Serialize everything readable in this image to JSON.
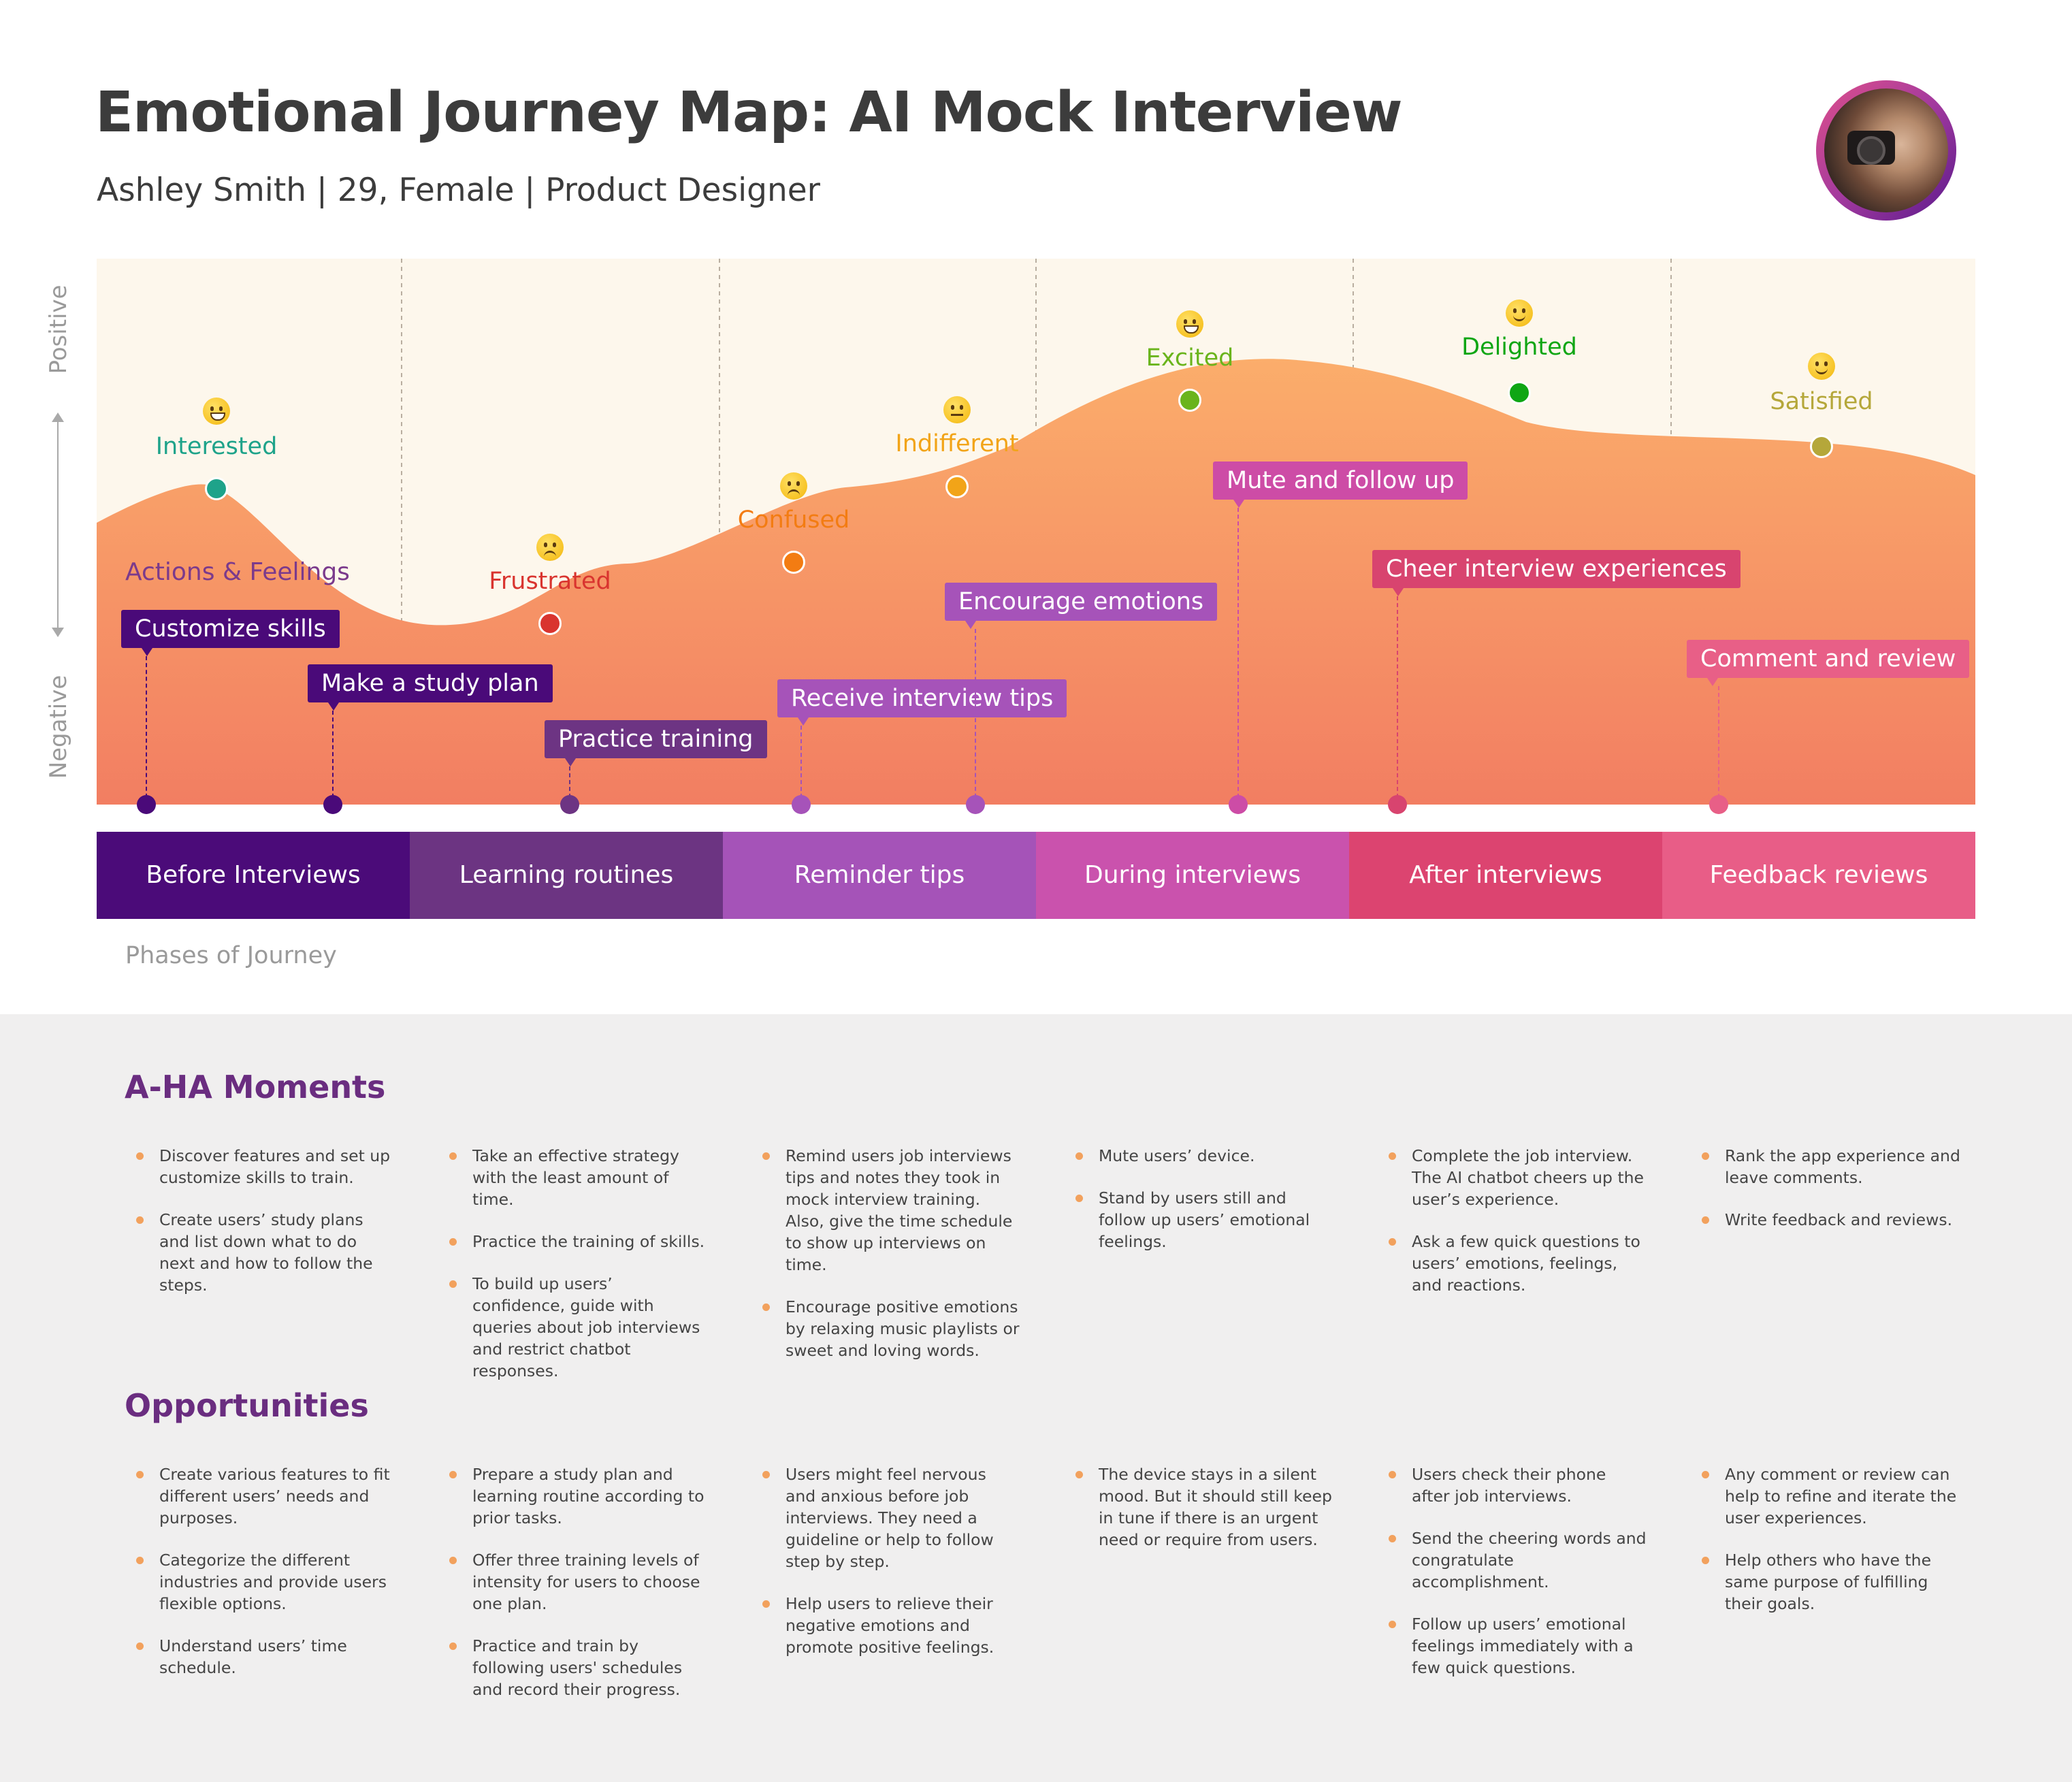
{
  "title": "Emotional Journey Map:  AI Mock Interview",
  "subtitle": "Ashley Smith | 29, Female | Product Designer",
  "axis": {
    "positive": "Positive",
    "negative": "Negative"
  },
  "actions_label": "Actions & Feelings",
  "emotions": [
    {
      "label": "Interested",
      "color": "#1ea38a",
      "emoji": "grinning"
    },
    {
      "label": "Frustrated",
      "color": "#d9342f",
      "emoji": "persevering"
    },
    {
      "label": "Confused",
      "color": "#f37c12",
      "emoji": "confused"
    },
    {
      "label": "Indifferent",
      "color": "#f2a418",
      "emoji": "neutral"
    },
    {
      "label": "Excited",
      "color": "#6ab41c",
      "emoji": "laughing"
    },
    {
      "label": "Delighted",
      "color": "#0fa614",
      "emoji": "slight-smile"
    },
    {
      "label": "Satisfied",
      "color": "#b5a73a",
      "emoji": "relieved"
    }
  ],
  "actions": [
    {
      "label": "Customize skills",
      "color": "#4a0a79"
    },
    {
      "label": "Make a study plan",
      "color": "#4a0a79"
    },
    {
      "label": "Practice training",
      "color": "#6d3483"
    },
    {
      "label": "Receive interview tips",
      "color": "#a653b9"
    },
    {
      "label": "Encourage emotions",
      "color": "#a653b9"
    },
    {
      "label": "Mute and follow up",
      "color": "#cd4ca6"
    },
    {
      "label": "Cheer interview experiences",
      "color": "#d8446f"
    },
    {
      "label": "Comment and review",
      "color": "#e85f87"
    }
  ],
  "phases_label": "Phases of Journey",
  "phases": [
    {
      "label": "Before Interviews",
      "color": "#4b0b79"
    },
    {
      "label": "Learning routines",
      "color": "#6c3482"
    },
    {
      "label": "Reminder tips",
      "color": "#a553b8"
    },
    {
      "label": "During interviews",
      "color": "#ca52ad"
    },
    {
      "label": "After interviews",
      "color": "#dc4470"
    },
    {
      "label": "Feedback reviews",
      "color": "#e85d87"
    }
  ],
  "aha": {
    "title": "A-HA Moments",
    "columns": [
      [
        "Discover features and set up customize skills to train.",
        "Create users’ study plans and list down what to do next and how to follow the steps."
      ],
      [
        "Take an effective strategy with the least amount of time.",
        "Practice the training of skills.",
        "To build up users’ confidence, guide with queries about job interviews and restrict chatbot responses."
      ],
      [
        "Remind users job interviews tips and notes they took in mock interview training. Also, give the time schedule to show up interviews on time.",
        "Encourage positive emotions by relaxing music playlists or sweet and loving words."
      ],
      [
        "Mute users’ device.",
        "Stand by users still and follow up users’ emotional feelings."
      ],
      [
        "Complete the job interview. The AI chatbot cheers up the user’s experience.",
        "Ask a few quick questions to users’ emotions, feelings, and reactions."
      ],
      [
        "Rank the app experience and leave comments.",
        "Write feedback and reviews."
      ]
    ]
  },
  "opportunities": {
    "title": "Opportunities",
    "columns": [
      [
        "Create various features to fit different users’ needs and purposes.",
        "Categorize the different industries and provide users flexible options.",
        "Understand users’ time schedule."
      ],
      [
        "Prepare a study plan and learning routine according to prior tasks.",
        "Offer three training levels of intensity for users to choose one plan.",
        "Practice and train by following users' schedules and record their progress."
      ],
      [
        "Users might feel nervous and anxious before job interviews. They need a guideline or help to follow step by step.",
        "Help users to relieve their negative emotions and promote positive feelings."
      ],
      [
        "The device stays in a silent mood. But it should still keep in tune if there is an urgent need or require from users."
      ],
      [
        "Users check their phone after job interviews.",
        "Send the cheering words and congratulate accomplishment.",
        "Follow up users’ emotional feelings immediately with a few quick questions."
      ],
      [
        "Any comment or review can help to refine and iterate the user experiences.",
        "Help others who have the same purpose of fulfilling their goals."
      ]
    ]
  }
}
